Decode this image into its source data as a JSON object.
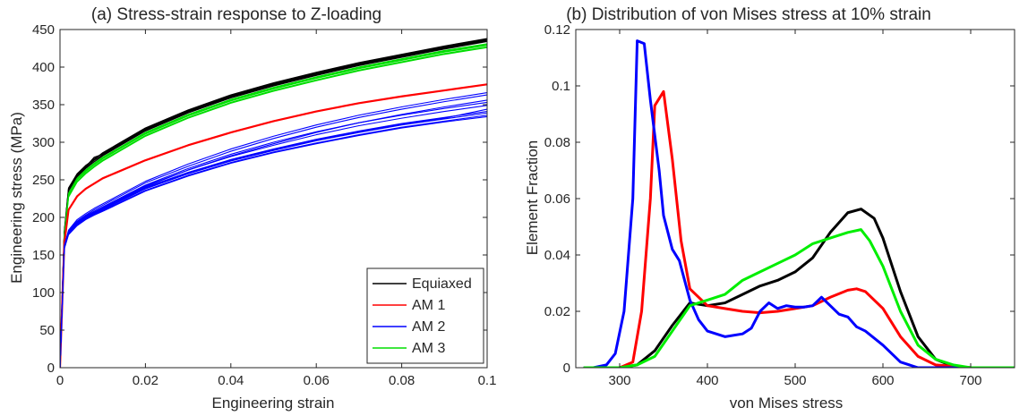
{
  "chart_data": [
    {
      "type": "line",
      "title": "(a) Stress-strain response to Z-loading",
      "xlabel": "Engineering strain",
      "ylabel": "Engineering stress (MPa)",
      "xlim": [
        0,
        0.1
      ],
      "ylim": [
        0,
        450
      ],
      "x_ticks": [
        0,
        0.02,
        0.04,
        0.06,
        0.08,
        0.1
      ],
      "x_tick_labels": [
        "0",
        "0.02",
        "0.04",
        "0.06",
        "0.08",
        "0.1"
      ],
      "y_ticks": [
        0,
        50,
        100,
        150,
        200,
        250,
        300,
        350,
        400,
        450
      ],
      "y_tick_labels": [
        "0",
        "50",
        "100",
        "150",
        "200",
        "250",
        "300",
        "350",
        "400",
        "450"
      ],
      "grid": false,
      "legend_position": "bottom-right",
      "legend": [
        {
          "label": "Equiaxed",
          "color": "#000000"
        },
        {
          "label": "AM 1",
          "color": "#ff0000"
        },
        {
          "label": "AM 2",
          "color": "#0000ff"
        },
        {
          "label": "AM 3",
          "color": "#00dd00"
        }
      ],
      "x": [
        0,
        0.001,
        0.002,
        0.004,
        0.006,
        0.008,
        0.01,
        0.02,
        0.03,
        0.04,
        0.05,
        0.06,
        0.07,
        0.08,
        0.09,
        0.1
      ],
      "series": [
        {
          "name": "Equiaxed",
          "color": "#000000",
          "width": 1.2,
          "values": [
            0,
            180,
            238,
            257,
            268,
            278,
            285,
            318,
            342,
            362,
            378,
            392,
            405,
            416,
            427,
            437
          ]
        },
        {
          "name": "Equiaxed",
          "color": "#000000",
          "width": 1.2,
          "values": [
            0,
            178,
            236,
            255,
            266,
            276,
            283,
            316,
            340,
            360,
            376,
            390,
            403,
            414,
            425,
            435
          ]
        },
        {
          "name": "Equiaxed",
          "color": "#000000",
          "width": 1.2,
          "values": [
            0,
            179,
            237,
            256,
            267,
            280,
            284,
            317,
            341,
            361,
            377,
            391,
            404,
            415,
            426,
            436
          ]
        },
        {
          "name": "Equiaxed",
          "color": "#000000",
          "width": 1.2,
          "values": [
            0,
            177,
            235,
            254,
            265,
            274,
            282,
            315,
            339,
            359,
            375,
            389,
            402,
            413,
            424,
            434
          ]
        },
        {
          "name": "Equiaxed",
          "color": "#000000",
          "width": 1.2,
          "values": [
            0,
            181,
            239,
            258,
            269,
            277,
            286,
            319,
            343,
            363,
            379,
            393,
            406,
            417,
            428,
            438
          ]
        },
        {
          "name": "AM 3",
          "color": "#00dd00",
          "width": 1.2,
          "values": [
            0,
            174,
            228,
            248,
            259,
            268,
            276,
            309,
            333,
            353,
            369,
            383,
            396,
            407,
            418,
            427
          ]
        },
        {
          "name": "AM 3",
          "color": "#00dd00",
          "width": 1.2,
          "values": [
            0,
            175,
            230,
            250,
            261,
            270,
            278,
            311,
            335,
            355,
            371,
            385,
            398,
            409,
            420,
            429
          ]
        },
        {
          "name": "AM 3",
          "color": "#00dd00",
          "width": 1.2,
          "values": [
            0,
            176,
            232,
            252,
            263,
            272,
            280,
            313,
            337,
            357,
            373,
            387,
            400,
            411,
            422,
            431
          ]
        },
        {
          "name": "AM 3",
          "color": "#00dd00",
          "width": 1.2,
          "values": [
            0,
            175,
            231,
            251,
            262,
            271,
            279,
            312,
            336,
            356,
            372,
            386,
            399,
            410,
            421,
            430
          ]
        },
        {
          "name": "AM 3",
          "color": "#00dd00",
          "width": 1.2,
          "values": [
            0,
            173,
            227,
            247,
            258,
            267,
            275,
            308,
            332,
            352,
            368,
            382,
            395,
            406,
            417,
            426
          ]
        },
        {
          "name": "AM 1",
          "color": "#ff0000",
          "width": 2.2,
          "values": [
            0,
            165,
            210,
            228,
            238,
            245,
            252,
            276,
            296,
            313,
            328,
            341,
            352,
            361,
            369,
            377
          ]
        },
        {
          "name": "AM 2",
          "color": "#0000ff",
          "width": 1.1,
          "values": [
            0,
            160,
            180,
            192,
            200,
            206,
            212,
            241,
            263,
            282,
            298,
            313,
            326,
            337,
            347,
            356
          ]
        },
        {
          "name": "AM 2",
          "color": "#0000ff",
          "width": 1.1,
          "values": [
            0,
            161,
            182,
            195,
            203,
            210,
            216,
            246,
            268,
            288,
            305,
            320,
            333,
            344,
            354,
            363
          ]
        },
        {
          "name": "AM 2",
          "color": "#0000ff",
          "width": 1.1,
          "values": [
            0,
            162,
            183,
            197,
            205,
            212,
            218,
            248,
            271,
            291,
            308,
            323,
            336,
            347,
            357,
            366
          ]
        },
        {
          "name": "AM 2",
          "color": "#0000ff",
          "width": 1.1,
          "values": [
            0,
            160,
            180,
            193,
            201,
            207,
            212,
            240,
            260,
            277,
            291,
            304,
            315,
            325,
            333,
            341
          ]
        },
        {
          "name": "AM 2",
          "color": "#0000ff",
          "width": 1.1,
          "values": [
            0,
            159,
            179,
            191,
            199,
            205,
            210,
            238,
            258,
            275,
            289,
            302,
            313,
            323,
            331,
            339
          ]
        },
        {
          "name": "AM 2",
          "color": "#0000ff",
          "width": 1.1,
          "values": [
            0,
            159,
            178,
            190,
            198,
            204,
            209,
            236,
            256,
            273,
            287,
            299,
            310,
            320,
            328,
            336
          ]
        },
        {
          "name": "AM 2",
          "color": "#0000ff",
          "width": 1.1,
          "values": [
            0,
            160,
            181,
            194,
            202,
            208,
            214,
            243,
            265,
            284,
            300,
            314,
            326,
            336,
            345,
            353
          ]
        },
        {
          "name": "AM 2",
          "color": "#0000ff",
          "width": 1.1,
          "values": [
            0,
            159,
            179,
            191,
            199,
            205,
            211,
            239,
            259,
            276,
            290,
            303,
            314,
            324,
            332,
            344
          ]
        },
        {
          "name": "AM 2",
          "color": "#0000ff",
          "width": 1.1,
          "values": [
            0,
            158,
            177,
            189,
            197,
            203,
            208,
            235,
            255,
            272,
            286,
            298,
            309,
            319,
            327,
            334
          ]
        },
        {
          "name": "AM 2",
          "color": "#0000ff",
          "width": 1.1,
          "values": [
            0,
            160,
            180,
            193,
            201,
            207,
            213,
            242,
            263,
            281,
            296,
            310,
            322,
            332,
            341,
            349
          ]
        }
      ]
    },
    {
      "type": "line",
      "title": "(b) Distribution of von Mises stress at 10% strain",
      "xlabel": "von Mises stress",
      "ylabel": "Element Fraction",
      "xlim": [
        250,
        750
      ],
      "ylim": [
        0,
        0.12
      ],
      "x_ticks": [
        300,
        400,
        500,
        600,
        700
      ],
      "x_tick_labels": [
        "300",
        "400",
        "500",
        "600",
        "700"
      ],
      "y_ticks": [
        0,
        0.02,
        0.04,
        0.06,
        0.08,
        0.1,
        0.12
      ],
      "y_tick_labels": [
        "0",
        "0.02",
        "0.04",
        "0.06",
        "0.08",
        "0.1",
        "0.12"
      ],
      "grid": false,
      "series": [
        {
          "name": "Equiaxed",
          "color": "#000000",
          "width": 3,
          "points": [
            [
              260,
              0
            ],
            [
              300,
              0
            ],
            [
              320,
              0.001
            ],
            [
              340,
              0.006
            ],
            [
              360,
              0.015
            ],
            [
              380,
              0.023
            ],
            [
              400,
              0.022
            ],
            [
              420,
              0.023
            ],
            [
              440,
              0.026
            ],
            [
              460,
              0.029
            ],
            [
              480,
              0.031
            ],
            [
              500,
              0.034
            ],
            [
              520,
              0.039
            ],
            [
              540,
              0.048
            ],
            [
              560,
              0.055
            ],
            [
              575,
              0.0563
            ],
            [
              590,
              0.053
            ],
            [
              600,
              0.046
            ],
            [
              620,
              0.027
            ],
            [
              640,
              0.011
            ],
            [
              660,
              0.003
            ],
            [
              680,
              0.0005
            ],
            [
              700,
              0
            ],
            [
              750,
              0
            ]
          ]
        },
        {
          "name": "AM 1",
          "color": "#ff0000",
          "width": 3,
          "points": [
            [
              260,
              0
            ],
            [
              300,
              0
            ],
            [
              315,
              0.002
            ],
            [
              325,
              0.02
            ],
            [
              335,
              0.06
            ],
            [
              340,
              0.093
            ],
            [
              350,
              0.098
            ],
            [
              360,
              0.074
            ],
            [
              370,
              0.045
            ],
            [
              380,
              0.028
            ],
            [
              400,
              0.022
            ],
            [
              420,
              0.021
            ],
            [
              440,
              0.02
            ],
            [
              460,
              0.0195
            ],
            [
              480,
              0.02
            ],
            [
              500,
              0.021
            ],
            [
              520,
              0.022
            ],
            [
              540,
              0.025
            ],
            [
              560,
              0.0275
            ],
            [
              570,
              0.028
            ],
            [
              580,
              0.027
            ],
            [
              600,
              0.021
            ],
            [
              620,
              0.011
            ],
            [
              640,
              0.004
            ],
            [
              660,
              0.001
            ],
            [
              700,
              0
            ],
            [
              750,
              0
            ]
          ]
        },
        {
          "name": "AM 2",
          "color": "#0000ff",
          "width": 3,
          "points": [
            [
              260,
              0
            ],
            [
              270,
              0
            ],
            [
              285,
              0.001
            ],
            [
              295,
              0.005
            ],
            [
              305,
              0.02
            ],
            [
              315,
              0.06
            ],
            [
              320,
              0.116
            ],
            [
              328,
              0.115
            ],
            [
              335,
              0.095
            ],
            [
              345,
              0.07
            ],
            [
              350,
              0.054
            ],
            [
              360,
              0.042
            ],
            [
              368,
              0.038
            ],
            [
              380,
              0.024
            ],
            [
              390,
              0.017
            ],
            [
              400,
              0.013
            ],
            [
              420,
              0.011
            ],
            [
              440,
              0.012
            ],
            [
              450,
              0.014
            ],
            [
              460,
              0.02
            ],
            [
              470,
              0.023
            ],
            [
              480,
              0.021
            ],
            [
              490,
              0.022
            ],
            [
              500,
              0.0215
            ],
            [
              510,
              0.0215
            ],
            [
              520,
              0.022
            ],
            [
              530,
              0.025
            ],
            [
              540,
              0.022
            ],
            [
              550,
              0.019
            ],
            [
              560,
              0.018
            ],
            [
              570,
              0.0145
            ],
            [
              580,
              0.013
            ],
            [
              600,
              0.008
            ],
            [
              620,
              0.002
            ],
            [
              640,
              0
            ],
            [
              750,
              0
            ]
          ]
        },
        {
          "name": "AM 3",
          "color": "#00ee00",
          "width": 3,
          "points": [
            [
              260,
              0
            ],
            [
              300,
              0
            ],
            [
              320,
              0.001
            ],
            [
              340,
              0.004
            ],
            [
              360,
              0.013
            ],
            [
              380,
              0.022
            ],
            [
              400,
              0.024
            ],
            [
              420,
              0.026
            ],
            [
              440,
              0.031
            ],
            [
              460,
              0.034
            ],
            [
              480,
              0.037
            ],
            [
              500,
              0.04
            ],
            [
              520,
              0.044
            ],
            [
              540,
              0.046
            ],
            [
              560,
              0.048
            ],
            [
              575,
              0.049
            ],
            [
              585,
              0.045
            ],
            [
              600,
              0.036
            ],
            [
              620,
              0.02
            ],
            [
              640,
              0.008
            ],
            [
              660,
              0.003
            ],
            [
              680,
              0.001
            ],
            [
              700,
              0
            ],
            [
              750,
              0
            ]
          ]
        }
      ]
    }
  ]
}
